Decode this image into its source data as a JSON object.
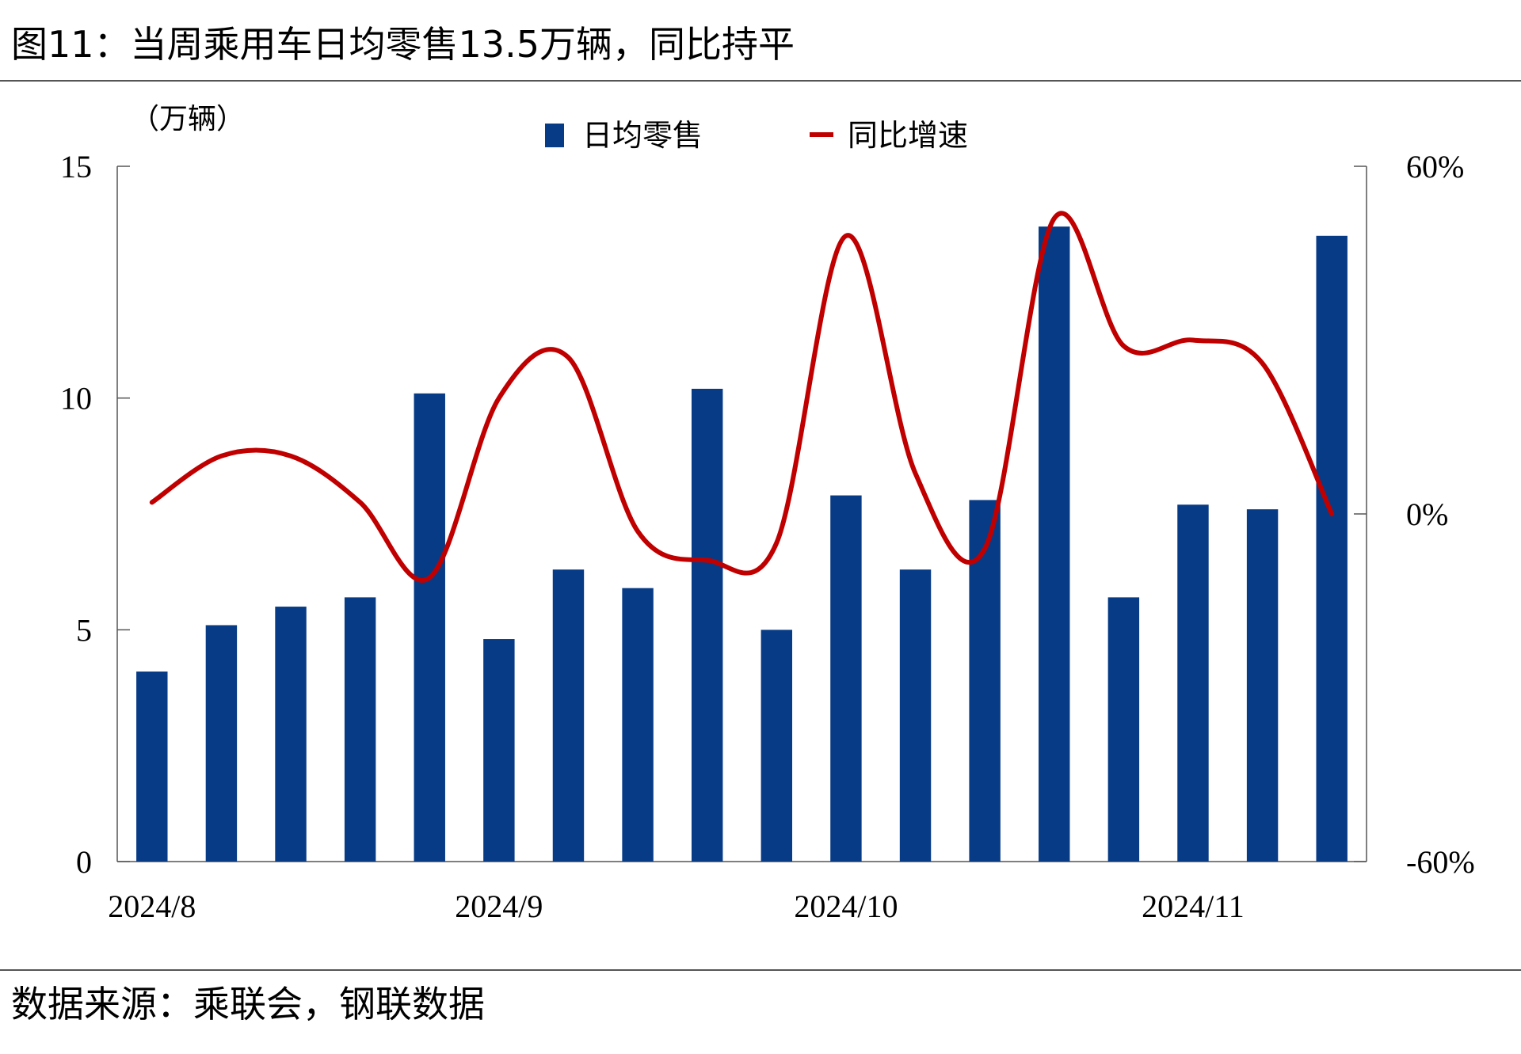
{
  "header": {
    "title": "图11：当周乘用车日均零售13.5万辆，同比持平"
  },
  "footer": {
    "source": "数据来源：乘联会，钢联数据"
  },
  "chart_data": {
    "type": "bar+line",
    "y_unit_label": "（万辆）",
    "legend": {
      "bar": "日均零售",
      "line": "同比增速"
    },
    "colors": {
      "bar": "#073B86",
      "line": "#C00000"
    },
    "x_tick_labels": [
      "2024/8",
      "2024/9",
      "2024/10",
      "2024/11"
    ],
    "x_tick_positions": [
      0,
      5,
      10,
      15
    ],
    "left_axis": {
      "min": 0,
      "max": 15,
      "ticks": [
        0,
        5,
        10,
        15
      ]
    },
    "right_axis": {
      "min": -60,
      "max": 60,
      "ticks": [
        -60,
        0,
        60
      ],
      "tick_labels": [
        "-60%",
        "0%",
        "60%"
      ]
    },
    "series": [
      {
        "name": "日均零售",
        "axis": "left",
        "values": [
          4.1,
          5.1,
          5.5,
          5.7,
          10.1,
          4.8,
          6.3,
          5.9,
          10.2,
          5.0,
          7.9,
          6.3,
          7.8,
          13.7,
          5.7,
          7.7,
          7.6,
          13.5
        ]
      },
      {
        "name": "同比增速",
        "axis": "right",
        "values": [
          2,
          10,
          10,
          2,
          -11,
          20,
          27,
          -3,
          -8,
          -5,
          48,
          7,
          -6,
          51,
          29,
          30,
          26,
          0
        ]
      }
    ]
  }
}
